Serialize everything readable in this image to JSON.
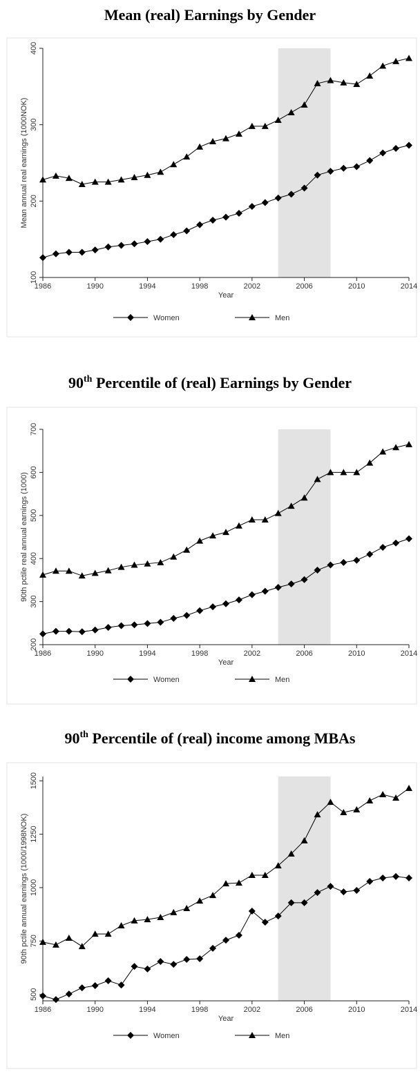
{
  "chart_data": [
    {
      "type": "line",
      "title": [
        {
          "text": "Mean (real) Earnings by Gender"
        }
      ],
      "xlabel": "Year",
      "ylabel": "Mean annual real earnings (1000NOK)",
      "x": [
        1986,
        1987,
        1988,
        1989,
        1990,
        1991,
        1992,
        1993,
        1994,
        1995,
        1996,
        1997,
        1998,
        1999,
        2000,
        2001,
        2002,
        2003,
        2004,
        2005,
        2006,
        2007,
        2008,
        2009,
        2010,
        2011,
        2012,
        2013,
        2014
      ],
      "xlim": [
        1986,
        2014
      ],
      "xticks": [
        1986,
        1990,
        1994,
        1998,
        2002,
        2006,
        2010,
        2014
      ],
      "ylim": [
        100,
        400
      ],
      "yticks": [
        100,
        200,
        300,
        400
      ],
      "shaded_range": [
        2004,
        2008
      ],
      "legend": "bottom",
      "series": [
        {
          "name": "Women",
          "color": "#000000",
          "marker": "diamond",
          "values": [
            126,
            131,
            133,
            133,
            136,
            140,
            142,
            144,
            147,
            150,
            156,
            161,
            169,
            175,
            179,
            184,
            193,
            198,
            204,
            209,
            217,
            234,
            239,
            243,
            245,
            253,
            263,
            269,
            273
          ]
        },
        {
          "name": "Men",
          "color": "#000000",
          "marker": "triangle",
          "values": [
            228,
            233,
            230,
            222,
            225,
            225,
            228,
            231,
            234,
            238,
            248,
            258,
            271,
            278,
            282,
            288,
            298,
            298,
            306,
            316,
            326,
            354,
            358,
            355,
            353,
            364,
            377,
            383,
            387
          ]
        }
      ]
    },
    {
      "type": "line",
      "title": [
        {
          "text": "90"
        },
        {
          "text": "th",
          "sup": true
        },
        {
          "text": " Percentile of (real) Earnings by Gender"
        }
      ],
      "xlabel": "Year",
      "ylabel": "90th pctile real annual earnings (1000)",
      "x": [
        1986,
        1987,
        1988,
        1989,
        1990,
        1991,
        1992,
        1993,
        1994,
        1995,
        1996,
        1997,
        1998,
        1999,
        2000,
        2001,
        2002,
        2003,
        2004,
        2005,
        2006,
        2007,
        2008,
        2009,
        2010,
        2011,
        2012,
        2013,
        2014
      ],
      "xlim": [
        1986,
        2014
      ],
      "xticks": [
        1986,
        1990,
        1994,
        1998,
        2002,
        2006,
        2010,
        2014
      ],
      "ylim": [
        200,
        700
      ],
      "yticks": [
        200,
        300,
        400,
        500,
        600,
        700
      ],
      "shaded_range": [
        2004,
        2008
      ],
      "legend": "bottom",
      "series": [
        {
          "name": "Women",
          "color": "#000000",
          "marker": "diamond",
          "values": [
            225,
            231,
            231,
            230,
            234,
            240,
            244,
            246,
            249,
            252,
            261,
            268,
            279,
            288,
            295,
            304,
            316,
            324,
            333,
            341,
            351,
            373,
            385,
            391,
            396,
            410,
            426,
            436,
            446
          ]
        },
        {
          "name": "Men",
          "color": "#000000",
          "marker": "triangle",
          "values": [
            362,
            371,
            371,
            360,
            366,
            372,
            380,
            385,
            388,
            391,
            404,
            420,
            441,
            453,
            461,
            476,
            490,
            490,
            505,
            522,
            541,
            584,
            600,
            600,
            600,
            622,
            648,
            658,
            665
          ]
        }
      ]
    },
    {
      "type": "line",
      "title": [
        {
          "text": "90"
        },
        {
          "text": "th",
          "sup": true
        },
        {
          "text": " Percentile of (real) income among MBAs"
        }
      ],
      "xlabel": "Year",
      "ylabel": "90th pctile annual earnings (1000/1998NOK)",
      "x": [
        1986,
        1987,
        1988,
        1989,
        1990,
        1991,
        1992,
        1993,
        1994,
        1995,
        1996,
        1997,
        1998,
        1999,
        2000,
        2001,
        2002,
        2003,
        2004,
        2005,
        2006,
        2007,
        2008,
        2009,
        2010,
        2011,
        2012,
        2013,
        2014
      ],
      "xlim": [
        1986,
        2014
      ],
      "xticks": [
        1986,
        1990,
        1994,
        1998,
        2002,
        2006,
        2010,
        2014
      ],
      "ylim": [
        470,
        1520
      ],
      "yticks": [
        500,
        750,
        1000,
        1250,
        1500
      ],
      "shaded_range": [
        2004,
        2008
      ],
      "legend": "bottom",
      "series": [
        {
          "name": "Women",
          "color": "#000000",
          "marker": "diamond",
          "values": [
            493,
            476,
            502,
            531,
            541,
            564,
            544,
            631,
            619,
            654,
            641,
            664,
            667,
            716,
            754,
            777,
            890,
            838,
            867,
            929,
            929,
            977,
            1006,
            980,
            987,
            1029,
            1045,
            1052,
            1045
          ]
        },
        {
          "name": "Men",
          "color": "#000000",
          "marker": "triangle",
          "values": [
            745,
            732,
            764,
            725,
            783,
            783,
            822,
            845,
            851,
            861,
            884,
            903,
            938,
            964,
            1019,
            1022,
            1058,
            1058,
            1103,
            1158,
            1220,
            1342,
            1400,
            1352,
            1365,
            1407,
            1436,
            1420,
            1465
          ]
        }
      ]
    }
  ]
}
